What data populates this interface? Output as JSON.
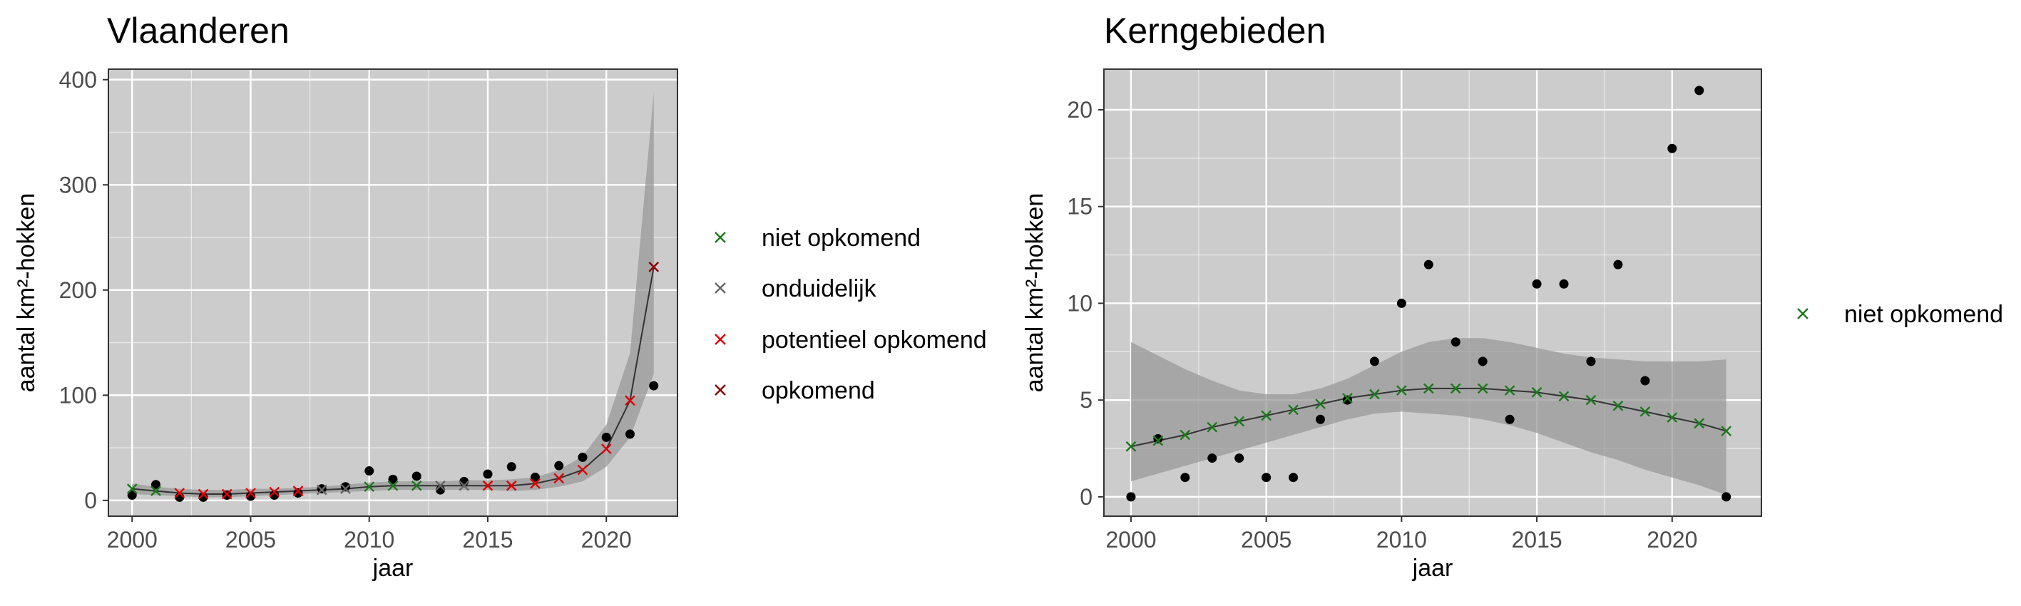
{
  "chart_data": [
    {
      "type": "scatter",
      "title": "Vlaanderen",
      "xlabel": "jaar",
      "ylabel": "aantal km²-hokken",
      "xlim": [
        1999,
        2023
      ],
      "ylim": [
        -15,
        410
      ],
      "x_ticks": [
        2000,
        2005,
        2010,
        2015,
        2020
      ],
      "y_ticks": [
        0,
        100,
        200,
        300,
        400
      ],
      "grid": true,
      "legend_placement": "right",
      "observed": {
        "x": [
          2000,
          2001,
          2002,
          2003,
          2004,
          2005,
          2006,
          2007,
          2008,
          2009,
          2010,
          2011,
          2012,
          2013,
          2014,
          2015,
          2016,
          2017,
          2018,
          2019,
          2020,
          2021,
          2022
        ],
        "y": [
          5,
          15,
          3,
          3,
          5,
          4,
          5,
          7,
          11,
          13,
          28,
          20,
          23,
          10,
          18,
          25,
          32,
          22,
          33,
          41,
          60,
          63,
          109
        ]
      },
      "fit": {
        "x": [
          2000,
          2001,
          2002,
          2003,
          2004,
          2005,
          2006,
          2007,
          2008,
          2009,
          2010,
          2011,
          2012,
          2013,
          2014,
          2015,
          2016,
          2017,
          2018,
          2019,
          2020,
          2021,
          2022
        ],
        "y": [
          11,
          9,
          7,
          6,
          6,
          7,
          8,
          9,
          10,
          11,
          13,
          14,
          14,
          14,
          14,
          14,
          14,
          16,
          21,
          29,
          49,
          95,
          222
        ],
        "lower": [
          6,
          5,
          4,
          3,
          3,
          4,
          5,
          6,
          7,
          8,
          9,
          10,
          10,
          10,
          10,
          10,
          9,
          10,
          13,
          18,
          32,
          60,
          120
        ],
        "upper": [
          16,
          13,
          11,
          10,
          10,
          11,
          11,
          12,
          13,
          15,
          17,
          18,
          18,
          18,
          19,
          19,
          20,
          22,
          29,
          42,
          72,
          140,
          388
        ],
        "classes": [
          "niet opkomend",
          "niet opkomend",
          "potentieel opkomend",
          "potentieel opkomend",
          "potentieel opkomend",
          "potentieel opkomend",
          "potentieel opkomend",
          "potentieel opkomend",
          "onduidelijk",
          "onduidelijk",
          "niet opkomend",
          "niet opkomend",
          "niet opkomend",
          "onduidelijk",
          "onduidelijk",
          "potentieel opkomend",
          "potentieel opkomend",
          "potentieel opkomend",
          "potentieel opkomend",
          "potentieel opkomend",
          "potentieel opkomend",
          "potentieel opkomend",
          "opkomend"
        ]
      },
      "legend": [
        {
          "label": "niet opkomend",
          "color": "#1a7a1a"
        },
        {
          "label": "onduidelijk",
          "color": "#666666"
        },
        {
          "label": "potentieel opkomend",
          "color": "#e00000"
        },
        {
          "label": "opkomend",
          "color": "#8b0000"
        }
      ]
    },
    {
      "type": "scatter",
      "title": "Kerngebieden",
      "xlabel": "jaar",
      "ylabel": "aantal km²-hokken",
      "xlim": [
        1999,
        2023.3
      ],
      "ylim": [
        -1,
        22.1
      ],
      "x_ticks": [
        2000,
        2005,
        2010,
        2015,
        2020
      ],
      "y_ticks": [
        0,
        5,
        10,
        15,
        20
      ],
      "grid": true,
      "legend_placement": "right",
      "observed": {
        "x": [
          2000,
          2001,
          2002,
          2003,
          2004,
          2005,
          2006,
          2007,
          2008,
          2009,
          2010,
          2011,
          2012,
          2013,
          2014,
          2015,
          2016,
          2017,
          2018,
          2019,
          2020,
          2021,
          2022
        ],
        "y": [
          0,
          3,
          1,
          2,
          2,
          1,
          1,
          4,
          5,
          7,
          10,
          12,
          8,
          7,
          4,
          11,
          11,
          7,
          12,
          6,
          18,
          21,
          0
        ]
      },
      "fit": {
        "x": [
          2000,
          2001,
          2002,
          2003,
          2004,
          2005,
          2006,
          2007,
          2008,
          2009,
          2010,
          2011,
          2012,
          2013,
          2014,
          2015,
          2016,
          2017,
          2018,
          2019,
          2020,
          2021,
          2022
        ],
        "y": [
          2.6,
          2.9,
          3.2,
          3.6,
          3.9,
          4.2,
          4.5,
          4.8,
          5.1,
          5.3,
          5.5,
          5.6,
          5.6,
          5.6,
          5.5,
          5.4,
          5.2,
          5.0,
          4.7,
          4.4,
          4.1,
          3.8,
          3.4
        ],
        "lower": [
          0.8,
          1.2,
          1.6,
          2.0,
          2.4,
          2.8,
          3.2,
          3.6,
          4.0,
          4.3,
          4.4,
          4.3,
          4.2,
          4.0,
          3.7,
          3.3,
          2.8,
          2.3,
          1.9,
          1.4,
          1.0,
          0.6,
          0.1
        ],
        "upper": [
          8.0,
          7.3,
          6.6,
          6.0,
          5.5,
          5.3,
          5.3,
          5.6,
          6.1,
          6.8,
          7.5,
          8.0,
          8.2,
          8.2,
          8.0,
          7.7,
          7.4,
          7.2,
          7.1,
          7.0,
          7.0,
          7.0,
          7.1
        ],
        "classes": [
          "niet opkomend",
          "niet opkomend",
          "niet opkomend",
          "niet opkomend",
          "niet opkomend",
          "niet opkomend",
          "niet opkomend",
          "niet opkomend",
          "niet opkomend",
          "niet opkomend",
          "niet opkomend",
          "niet opkomend",
          "niet opkomend",
          "niet opkomend",
          "niet opkomend",
          "niet opkomend",
          "niet opkomend",
          "niet opkomend",
          "niet opkomend",
          "niet opkomend",
          "niet opkomend",
          "niet opkomend",
          "niet opkomend"
        ]
      },
      "legend": [
        {
          "label": "niet opkomend",
          "color": "#1a7a1a"
        }
      ]
    }
  ],
  "style": {
    "panel_bg": "#cccccc",
    "grid_color": "#ffffff",
    "ribbon_color": "#999999",
    "point_color": "#000000",
    "line_color": "#333333"
  }
}
